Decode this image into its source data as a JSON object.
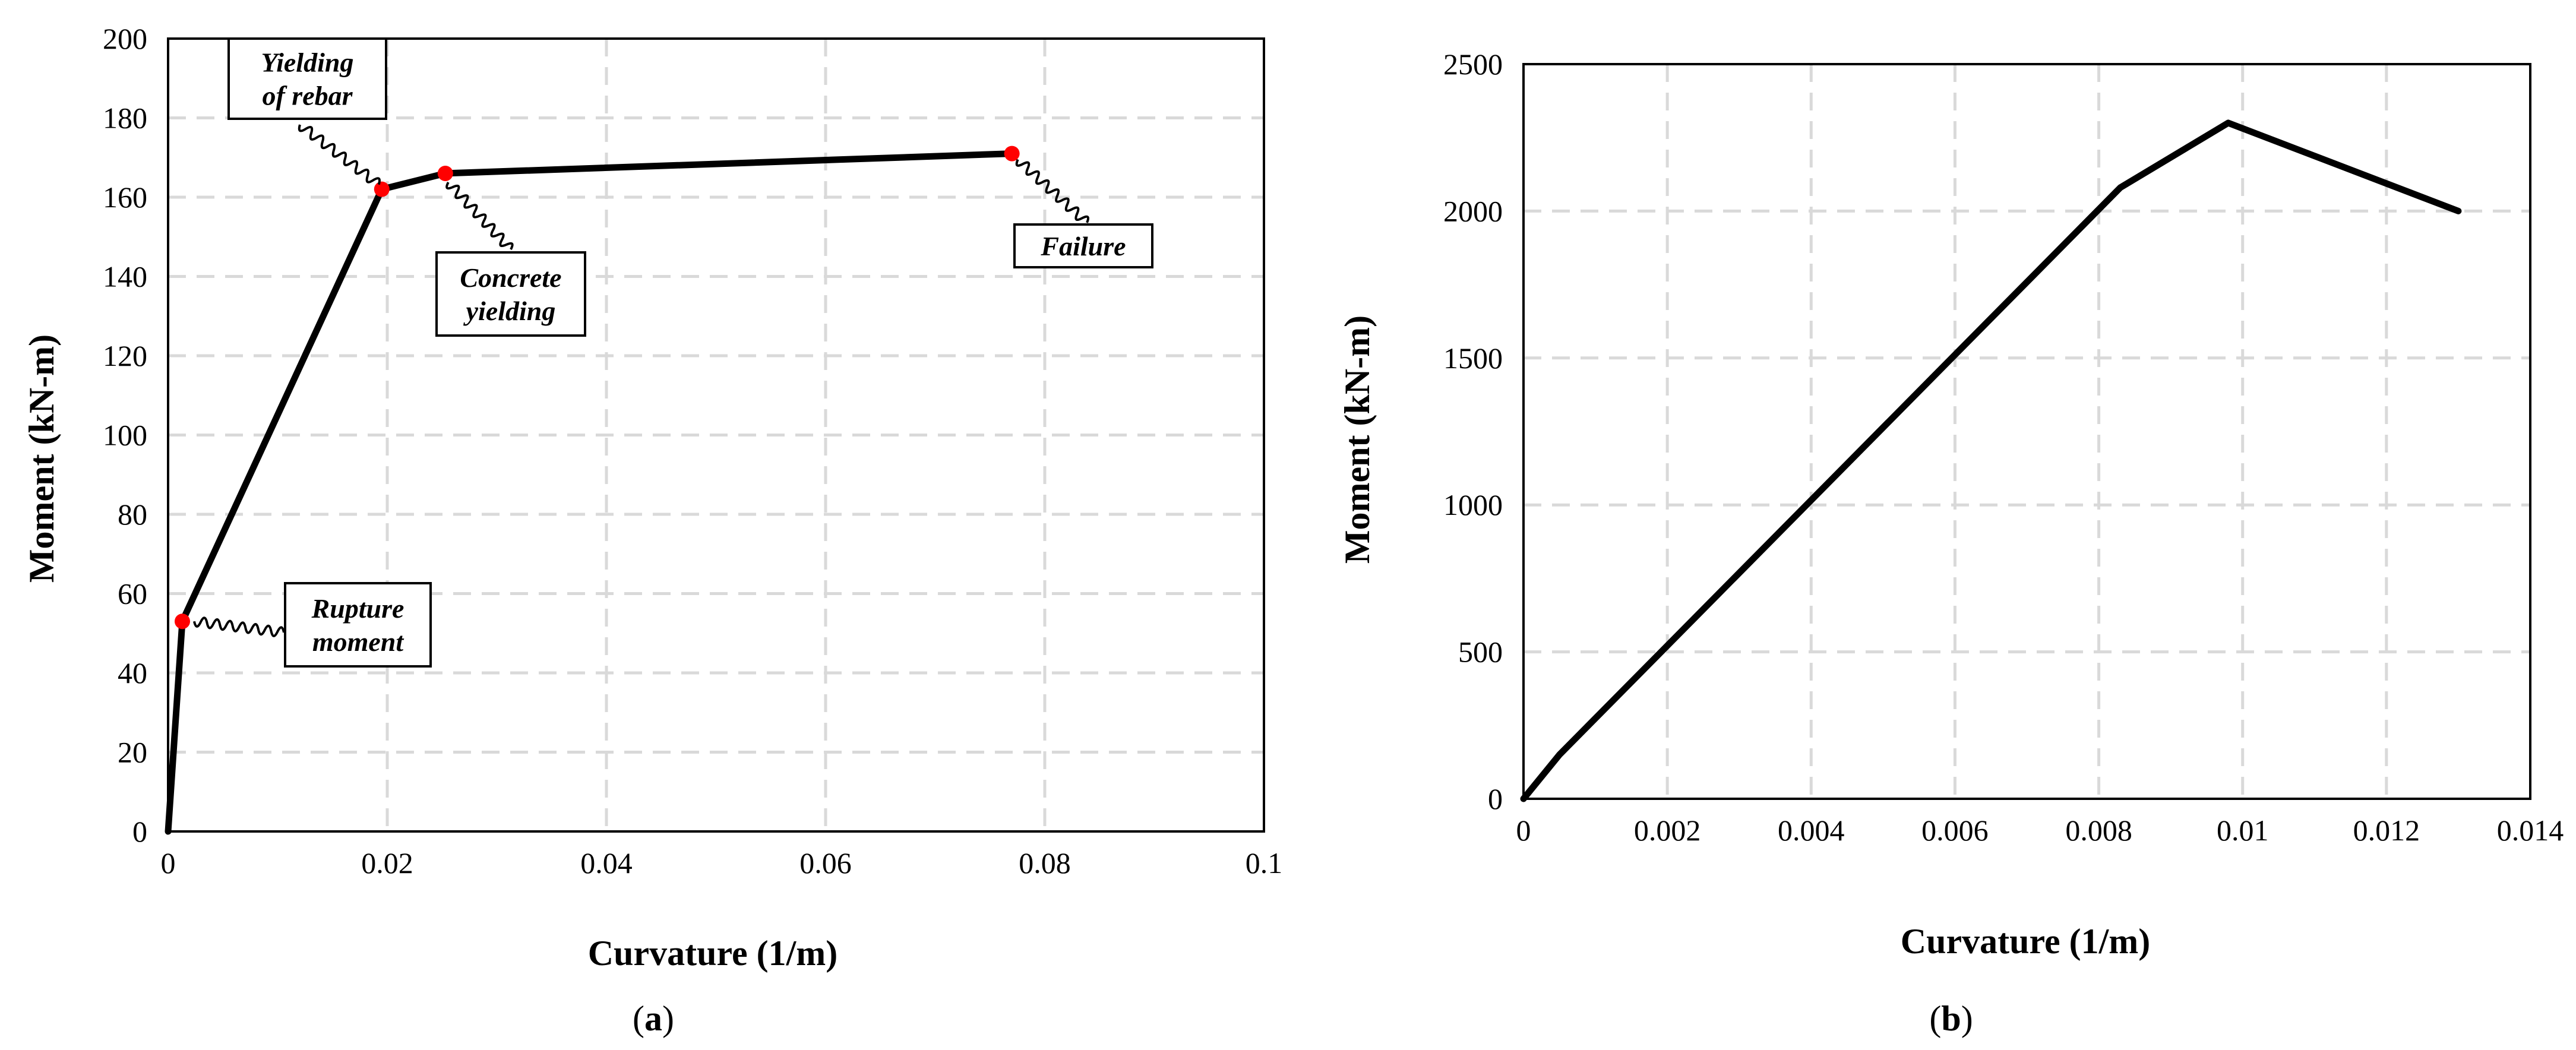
{
  "chart_data": [
    {
      "type": "line",
      "panel_label": "a",
      "xlabel": "Curvature (1/m)",
      "ylabel": "Moment (kN-m)",
      "xlim": [
        0,
        0.1
      ],
      "ylim": [
        0,
        200
      ],
      "xticks": [
        "0",
        "0.02",
        "0.04",
        "0.06",
        "0.08",
        "0.1"
      ],
      "yticks": [
        "0",
        "20",
        "40",
        "60",
        "80",
        "100",
        "120",
        "140",
        "160",
        "180",
        "200"
      ],
      "xtick_values": [
        0,
        0.02,
        0.04,
        0.06,
        0.08,
        0.1
      ],
      "ytick_values": [
        0,
        20,
        40,
        60,
        80,
        100,
        120,
        140,
        160,
        180,
        200
      ],
      "grid": true,
      "series": [
        {
          "x": [
            0,
            0.0013,
            0.0195,
            0.0253,
            0.077
          ],
          "y": [
            0,
            53,
            162,
            166,
            171
          ],
          "color": "#000000"
        }
      ],
      "markers": [
        {
          "x": 0.0013,
          "y": 53,
          "color": "#ff0000"
        },
        {
          "x": 0.0195,
          "y": 162,
          "color": "#ff0000"
        },
        {
          "x": 0.0253,
          "y": 166,
          "color": "#ff0000"
        },
        {
          "x": 0.077,
          "y": 171,
          "color": "#ff0000"
        }
      ],
      "annotations": [
        {
          "name": "yielding-of-rebar",
          "lines": [
            "Yielding",
            "of rebar"
          ]
        },
        {
          "name": "concrete-yielding",
          "lines": [
            "Concrete",
            "yielding"
          ]
        },
        {
          "name": "failure",
          "lines": [
            "Failure"
          ]
        },
        {
          "name": "rupture-moment",
          "lines": [
            "Rupture",
            "moment"
          ]
        }
      ]
    },
    {
      "type": "line",
      "panel_label": "b",
      "xlabel": "Curvature (1/m)",
      "ylabel": "Moment (kN-m)",
      "xlim": [
        0,
        0.014
      ],
      "ylim": [
        0,
        2500
      ],
      "xticks": [
        "0",
        "0.002",
        "0.004",
        "0.006",
        "0.008",
        "0.01",
        "0.012",
        "0.014"
      ],
      "yticks": [
        "0",
        "500",
        "1000",
        "1500",
        "2000",
        "2500"
      ],
      "xtick_values": [
        0,
        0.002,
        0.004,
        0.006,
        0.008,
        0.01,
        0.012,
        0.014
      ],
      "ytick_values": [
        0,
        500,
        1000,
        1500,
        2000,
        2500
      ],
      "grid": true,
      "series": [
        {
          "x": [
            0,
            0.0005,
            0.0083,
            0.0098,
            0.013
          ],
          "y": [
            0,
            150,
            2080,
            2300,
            2000
          ],
          "color": "#000000"
        }
      ],
      "markers": [],
      "annotations": []
    }
  ]
}
